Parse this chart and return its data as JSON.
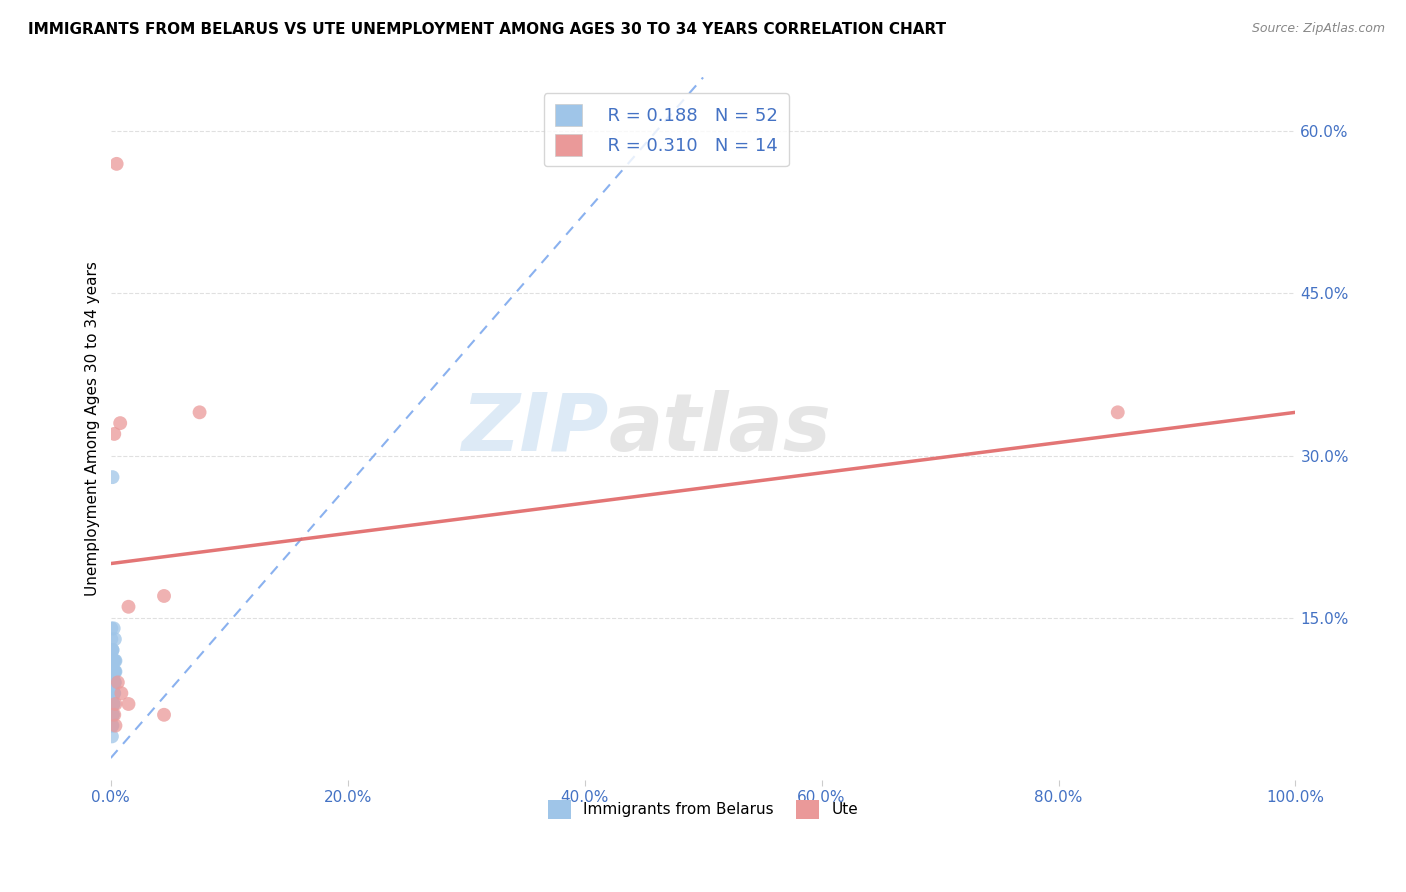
{
  "title": "IMMIGRANTS FROM BELARUS VS UTE UNEMPLOYMENT AMONG AGES 30 TO 34 YEARS CORRELATION CHART",
  "source": "Source: ZipAtlas.com",
  "xlabel_color": "#4472c4",
  "ylabel": "Unemployment Among Ages 30 to 34 years",
  "watermark_zip": "ZIP",
  "watermark_atlas": "atlas",
  "x_tick_labels": [
    "0.0%",
    "20.0%",
    "40.0%",
    "60.0%",
    "80.0%",
    "100.0%"
  ],
  "x_tick_positions": [
    0,
    20,
    40,
    60,
    80,
    100
  ],
  "y_tick_labels": [
    "15.0%",
    "30.0%",
    "45.0%",
    "60.0%"
  ],
  "y_tick_positions": [
    15,
    30,
    45,
    60
  ],
  "y_right_tick_color": "#4472c4",
  "xlim": [
    0,
    100
  ],
  "ylim": [
    0,
    65
  ],
  "legend_R1": "R = 0.188",
  "legend_N1": "N = 52",
  "legend_R2": "R = 0.310",
  "legend_N2": "N = 14",
  "legend_color": "#4472c4",
  "blue_scatter_x": [
    0.15,
    0.25,
    0.35,
    0.1,
    0.2,
    0.3,
    0.4,
    0.05,
    0.15,
    0.25,
    0.35,
    0.1,
    0.2,
    0.3,
    0.05,
    0.15,
    0.25,
    0.2,
    0.3,
    0.1,
    0.15,
    0.25,
    0.35,
    0.4,
    0.1,
    0.2,
    0.3,
    0.05,
    0.15,
    0.1,
    0.2,
    0.25,
    0.15,
    0.1,
    0.3,
    0.2,
    0.15,
    0.25,
    0.1,
    0.2,
    0.15,
    0.25,
    0.35,
    0.05,
    0.1,
    0.15,
    0.2,
    0.25,
    0.3,
    0.15,
    0.2,
    0.1
  ],
  "blue_scatter_y": [
    28,
    14,
    13,
    12,
    11,
    10,
    11,
    13,
    12,
    11,
    10,
    10,
    9,
    10,
    14,
    12,
    11,
    10,
    9,
    11,
    9,
    8,
    9,
    10,
    7,
    8,
    9,
    7,
    8,
    6,
    7,
    8,
    7,
    6,
    8,
    7,
    6,
    7,
    6,
    8,
    7,
    9,
    11,
    6,
    5,
    6,
    7,
    8,
    9,
    5,
    6,
    4
  ],
  "pink_scatter_x": [
    0.5,
    0.8,
    0.3,
    1.5,
    0.6,
    4.5,
    7.5,
    0.9,
    0.4,
    4.5,
    85,
    0.3,
    1.5,
    0.4
  ],
  "pink_scatter_y": [
    57,
    33,
    32,
    16,
    9,
    17,
    34,
    8,
    7,
    6,
    34,
    6,
    7,
    5
  ],
  "blue_line_x0": 0,
  "blue_line_y0": 2,
  "blue_line_x1": 50,
  "blue_line_y1": 65,
  "pink_line_x0": 0,
  "pink_line_y0": 20,
  "pink_line_x1": 100,
  "pink_line_y1": 34,
  "blue_color": "#9fc5e8",
  "pink_color": "#ea9999",
  "blue_line_color": "#6d9eeb",
  "pink_line_color": "#e06666",
  "background_color": "#ffffff",
  "grid_color": "#e0e0e0",
  "scatter_size": 100,
  "bottom_legend_label1": "Immigrants from Belarus",
  "bottom_legend_label2": "Ute"
}
